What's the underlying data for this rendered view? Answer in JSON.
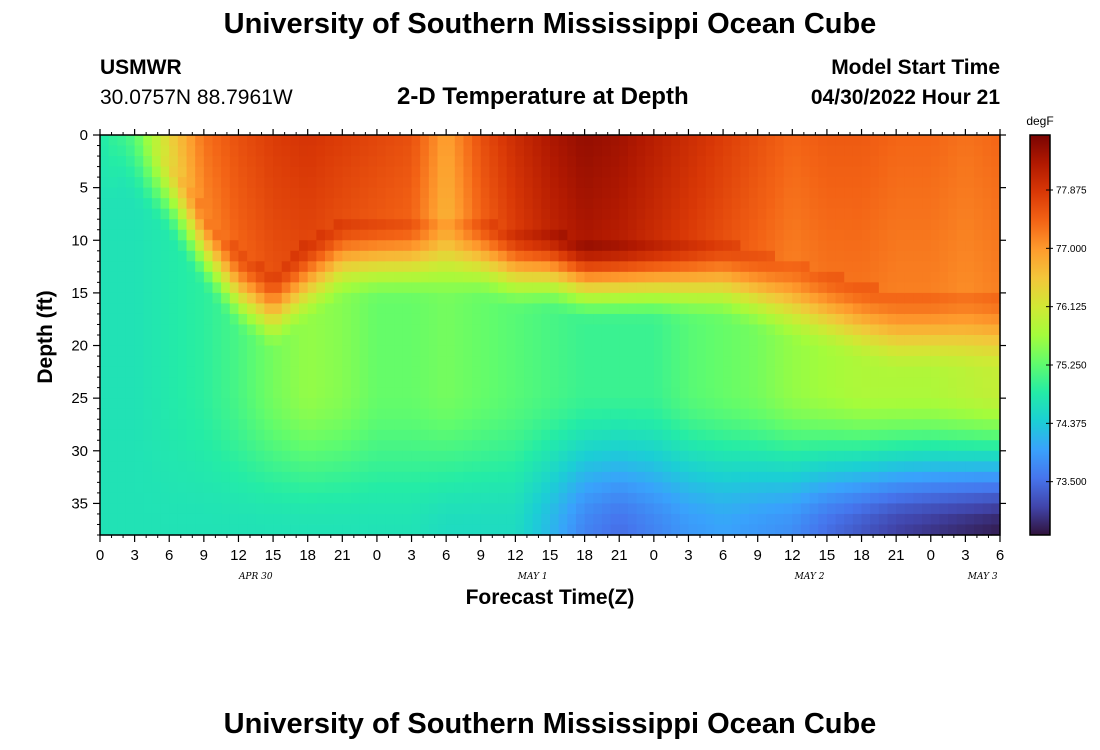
{
  "header": {
    "title": "University of Southern Mississippi Ocean Cube",
    "station": "USMWR",
    "coords": "30.0757N  88.7961W",
    "subtitle": "2-D Temperature at Depth",
    "model_label": "Model Start Time",
    "model_time": "04/30/2022 Hour 21"
  },
  "footer": {
    "title": "University of Southern Mississippi Ocean Cube"
  },
  "chart_data": {
    "type": "heatmap",
    "title": "2-D Temperature at Depth",
    "xlabel": "Forecast Time(Z)",
    "ylabel": "Depth (ft)",
    "x_ticks": [
      "0",
      "3",
      "6",
      "9",
      "12",
      "15",
      "18",
      "21",
      "0",
      "3",
      "6",
      "9",
      "12",
      "15",
      "18",
      "21",
      "0",
      "3",
      "6",
      "9",
      "12",
      "15",
      "18",
      "21",
      "0",
      "3",
      "6"
    ],
    "x_date_labels": [
      {
        "label": "APR 30",
        "hour_index": 4.5
      },
      {
        "label": "MAY 1",
        "hour_index": 12.5
      },
      {
        "label": "MAY 2",
        "hour_index": 20.5
      },
      {
        "label": "MAY 3",
        "hour_index": 25.5
      }
    ],
    "x_range_hours": [
      0,
      78
    ],
    "y_ticks": [
      0,
      5,
      10,
      15,
      20,
      25,
      30,
      35
    ],
    "ylim": [
      0,
      38
    ],
    "y_inverted": true,
    "colorbar": {
      "unit": "degF",
      "ticks": [
        "77.875",
        "77.000",
        "76.125",
        "75.250",
        "74.375",
        "73.500"
      ],
      "tick_values": [
        77.875,
        77.0,
        76.125,
        75.25,
        74.375,
        73.5
      ],
      "range": [
        72.7,
        78.7
      ],
      "colormap": [
        "#30123b",
        "#4145ab",
        "#4675ed",
        "#39a2fc",
        "#1bcfd4",
        "#24eca6",
        "#61fc6c",
        "#a4fc3b",
        "#d1e834",
        "#f3c63a",
        "#fe9b2d",
        "#f36315",
        "#d93806",
        "#b11901",
        "#7a0402"
      ]
    },
    "temperature_profile_hourly": {
      "hours": [
        0,
        3,
        6,
        9,
        12,
        15,
        18,
        21,
        24,
        27,
        30,
        33,
        36,
        39,
        42,
        45,
        48,
        51,
        54,
        57,
        60,
        63,
        66,
        69,
        72,
        75,
        78
      ],
      "surface_temp": [
        74.8,
        75.2,
        76.4,
        77.3,
        77.6,
        77.8,
        77.9,
        77.8,
        77.7,
        77.6,
        76.9,
        77.6,
        78.0,
        78.3,
        78.5,
        78.4,
        78.2,
        78.0,
        77.8,
        77.6,
        77.4,
        77.5,
        77.5,
        77.4,
        77.4,
        77.3,
        77.4
      ],
      "thermocline_depth_ft": [
        0,
        2,
        5,
        10,
        14,
        16,
        13,
        11,
        11,
        11,
        11,
        11,
        12,
        12,
        13,
        13,
        13,
        13,
        13,
        14,
        15,
        16,
        17,
        18,
        18,
        18,
        18
      ],
      "mid_temp": [
        74.7,
        74.7,
        74.8,
        74.9,
        75.1,
        75.4,
        75.6,
        75.5,
        75.3,
        75.3,
        75.4,
        75.3,
        75.2,
        75.1,
        75.0,
        75.0,
        75.0,
        75.2,
        75.3,
        75.4,
        75.6,
        75.7,
        75.8,
        75.8,
        75.8,
        75.9,
        76.0
      ],
      "bottom_temp": [
        74.7,
        74.7,
        74.7,
        74.7,
        74.7,
        74.7,
        74.7,
        74.7,
        74.7,
        74.7,
        74.6,
        74.6,
        74.6,
        74.2,
        73.7,
        73.5,
        73.7,
        73.9,
        74.0,
        73.9,
        73.8,
        73.5,
        73.3,
        73.1,
        73.0,
        72.9,
        72.8
      ]
    }
  }
}
